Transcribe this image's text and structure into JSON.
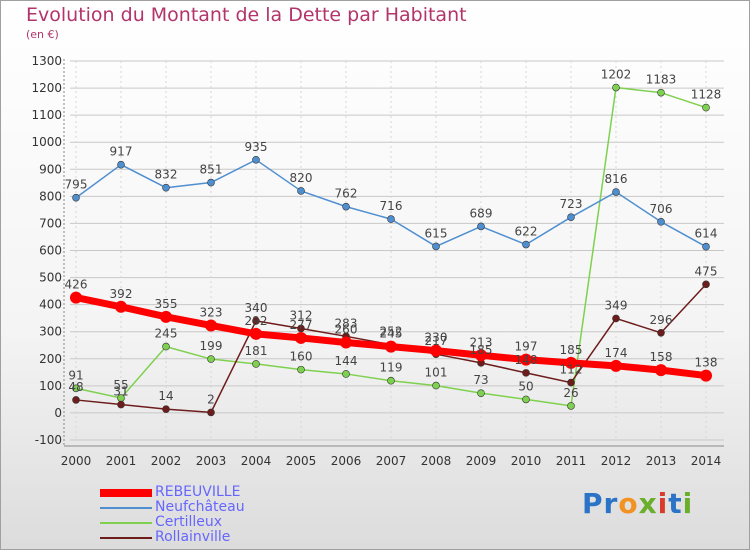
{
  "title": "Evolution du Montant de la Dette par Habitant",
  "subtitle": "(en €)",
  "logo": {
    "text": "Proxiti",
    "letters": [
      {
        "ch": "P",
        "color": "#2a73c6"
      },
      {
        "ch": "r",
        "color": "#2a73c6"
      },
      {
        "ch": "o",
        "color": "#f29222"
      },
      {
        "ch": "x",
        "color": "#6aae2b"
      },
      {
        "ch": "i",
        "color": "#d93a2b"
      },
      {
        "ch": "t",
        "color": "#2a73c6"
      },
      {
        "ch": "i",
        "color": "#6aae2b"
      }
    ]
  },
  "chart_data": {
    "type": "line",
    "title": "Evolution du Montant de la Dette par Habitant",
    "subtitle": "(en €)",
    "x": [
      2000,
      2001,
      2002,
      2003,
      2004,
      2005,
      2006,
      2007,
      2008,
      2009,
      2010,
      2011,
      2012,
      2013,
      2014
    ],
    "ylim": [
      -100,
      1300
    ],
    "yticks": [
      -100,
      0,
      100,
      200,
      300,
      400,
      500,
      600,
      700,
      800,
      900,
      1000,
      1100,
      1200,
      1300
    ],
    "grid": true,
    "legend_position": "bottom-left",
    "series": [
      {
        "name": "REBEUVILLE",
        "color": "#ff0000",
        "values": [
          426,
          392,
          355,
          323,
          292,
          277,
          260,
          245,
          230,
          213,
          197,
          185,
          174,
          158,
          138
        ]
      },
      {
        "name": "Neufchâteau",
        "color": "#4f8fd0",
        "values": [
          795,
          917,
          832,
          851,
          935,
          820,
          762,
          716,
          615,
          689,
          622,
          723,
          816,
          706,
          614
        ]
      },
      {
        "name": "Certilleux",
        "color": "#7ed14f",
        "values": [
          91,
          55,
          245,
          199,
          181,
          160,
          144,
          119,
          101,
          73,
          50,
          26,
          1202,
          1183,
          1128
        ]
      },
      {
        "name": "Rollainville",
        "color": "#6e1c1c",
        "values": [
          48,
          31,
          14,
          2,
          340,
          312,
          283,
          252,
          217,
          185,
          148,
          112,
          349,
          296,
          475
        ]
      }
    ]
  }
}
